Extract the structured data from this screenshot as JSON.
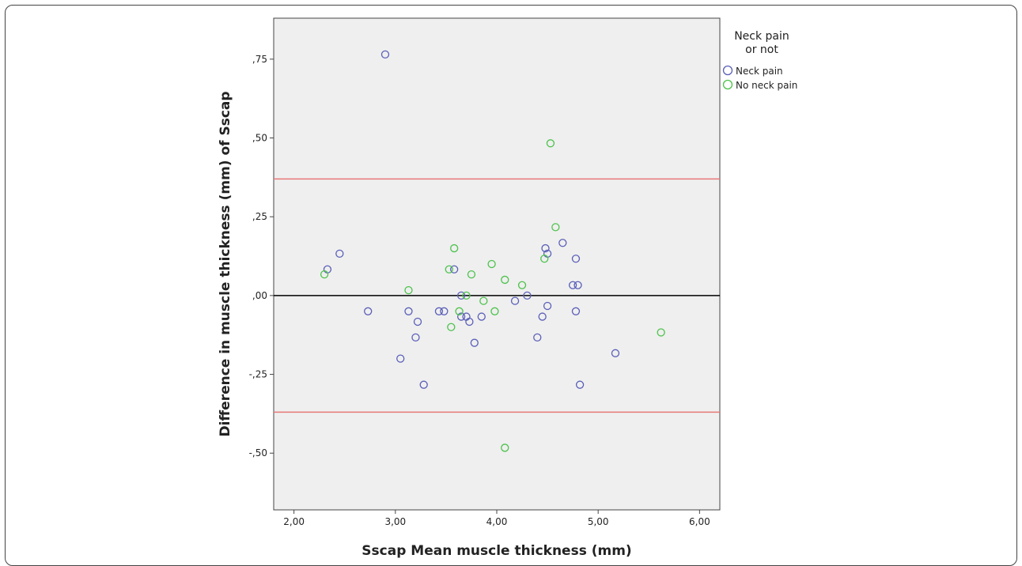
{
  "chart_data": {
    "type": "scatter",
    "title": "",
    "xlabel": "Sscap Mean muscle thickness (mm)",
    "ylabel": "Difference in muscle thickness (mm) of Sscap",
    "xlim": [
      1.8,
      6.2
    ],
    "ylim": [
      -0.68,
      0.88
    ],
    "x_ticks": [
      2.0,
      3.0,
      4.0,
      5.0,
      6.0
    ],
    "x_tick_labels": [
      "2,00",
      "3,00",
      "4,00",
      "5,00",
      "6,00"
    ],
    "y_ticks": [
      0.75,
      0.5,
      0.25,
      0.0,
      -0.25,
      -0.5
    ],
    "y_tick_labels": [
      ",75",
      ",50",
      ",25",
      ",00",
      "-,25",
      "-,50"
    ],
    "grid": false,
    "reference_lines": [
      {
        "y": 0.0,
        "color": "#000000"
      },
      {
        "y": 0.37,
        "color": "#e87878"
      },
      {
        "y": -0.37,
        "color": "#e87878"
      }
    ],
    "legend": {
      "title_line1": "Neck pain",
      "title_line2": "or not",
      "position": "right-outside-top"
    },
    "series": [
      {
        "name": "Neck pain",
        "color": "#5a5fb8",
        "points": [
          [
            2.9,
            0.765
          ],
          [
            2.33,
            0.083
          ],
          [
            2.45,
            0.133
          ],
          [
            2.73,
            -0.05
          ],
          [
            3.05,
            -0.2
          ],
          [
            3.13,
            -0.05
          ],
          [
            3.22,
            -0.083
          ],
          [
            3.2,
            -0.133
          ],
          [
            3.28,
            -0.283
          ],
          [
            3.43,
            -0.05
          ],
          [
            3.48,
            -0.05
          ],
          [
            3.58,
            0.083
          ],
          [
            3.65,
            -0.067
          ],
          [
            3.65,
            0.0
          ],
          [
            3.7,
            -0.067
          ],
          [
            3.73,
            -0.083
          ],
          [
            3.78,
            -0.15
          ],
          [
            3.85,
            -0.067
          ],
          [
            4.18,
            -0.017
          ],
          [
            4.3,
            0.0
          ],
          [
            4.4,
            -0.133
          ],
          [
            4.45,
            -0.067
          ],
          [
            4.48,
            0.15
          ],
          [
            4.5,
            0.133
          ],
          [
            4.5,
            -0.033
          ],
          [
            4.65,
            0.167
          ],
          [
            4.75,
            0.033
          ],
          [
            4.78,
            0.117
          ],
          [
            4.78,
            -0.05
          ],
          [
            4.8,
            0.033
          ],
          [
            4.82,
            -0.283
          ],
          [
            5.17,
            -0.183
          ]
        ]
      },
      {
        "name": "No neck pain",
        "color": "#4cc24c",
        "points": [
          [
            2.3,
            0.067
          ],
          [
            3.13,
            0.017
          ],
          [
            3.53,
            0.083
          ],
          [
            3.55,
            -0.1
          ],
          [
            3.58,
            0.15
          ],
          [
            3.63,
            -0.05
          ],
          [
            3.7,
            0.0
          ],
          [
            3.75,
            0.067
          ],
          [
            3.87,
            -0.017
          ],
          [
            3.95,
            0.1
          ],
          [
            3.98,
            -0.05
          ],
          [
            4.08,
            0.05
          ],
          [
            4.08,
            -0.483
          ],
          [
            4.25,
            0.033
          ],
          [
            4.47,
            0.117
          ],
          [
            4.53,
            0.483
          ],
          [
            4.58,
            0.217
          ],
          [
            5.62,
            -0.117
          ]
        ]
      }
    ]
  }
}
